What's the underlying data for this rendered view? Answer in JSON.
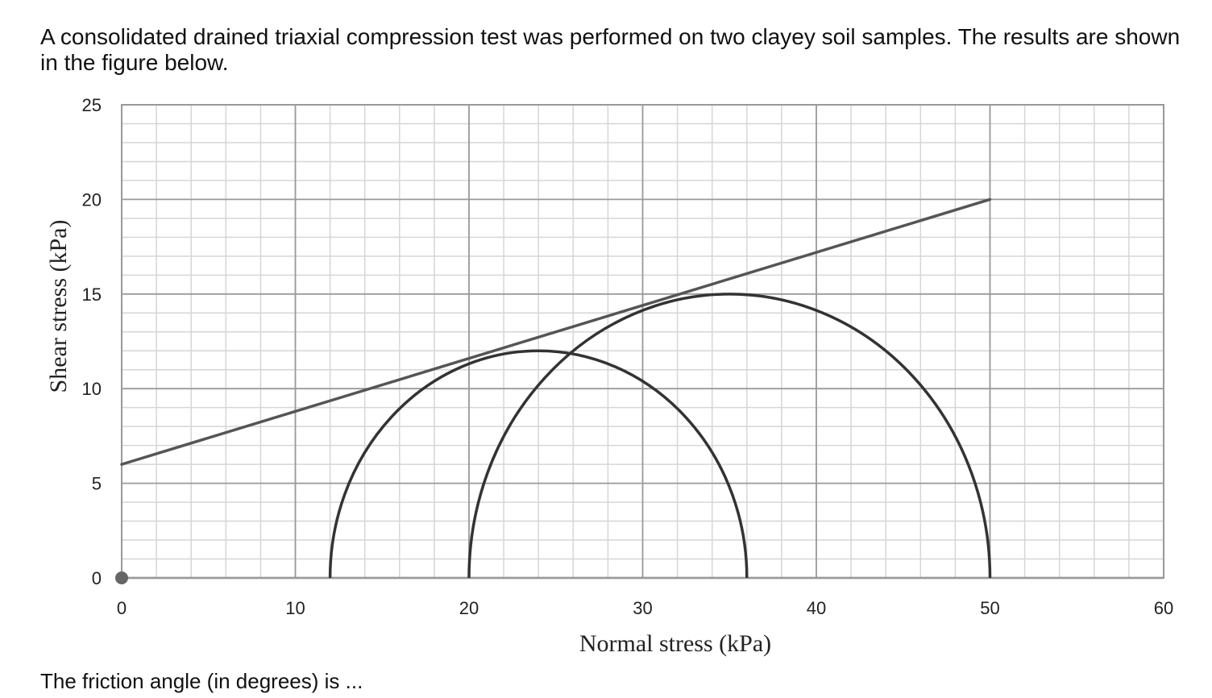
{
  "question": {
    "text": "A consolidated drained triaxial compression test was performed on two clayey soil samples. The results are shown in the figure below.",
    "prompt": "The friction angle (in degrees) is ..."
  },
  "chart_data": {
    "type": "line",
    "title": "",
    "xlabel": "Normal stress (kPa)",
    "ylabel": "Shear stress (kPa)",
    "xlim": [
      0,
      60
    ],
    "ylim": [
      0,
      25
    ],
    "xticks": [
      0,
      10,
      20,
      30,
      40,
      50,
      60
    ],
    "yticks": [
      0,
      5,
      10,
      15,
      20,
      25
    ],
    "grid": true,
    "minor_grid_step_x": 2,
    "minor_grid_step_y": 1,
    "legend": "none",
    "series": [
      {
        "kind": "failure-envelope-line",
        "points": [
          [
            0,
            6
          ],
          [
            50,
            20
          ]
        ],
        "color": "#555555"
      },
      {
        "kind": "mohr-circle",
        "sigma3": 12,
        "sigma1": 36,
        "color": "#333333"
      },
      {
        "kind": "mohr-circle",
        "sigma3": 20,
        "sigma1": 50,
        "color": "#333333"
      }
    ],
    "origin_marker": {
      "x": 0,
      "y": 0,
      "color": "#666666"
    }
  }
}
